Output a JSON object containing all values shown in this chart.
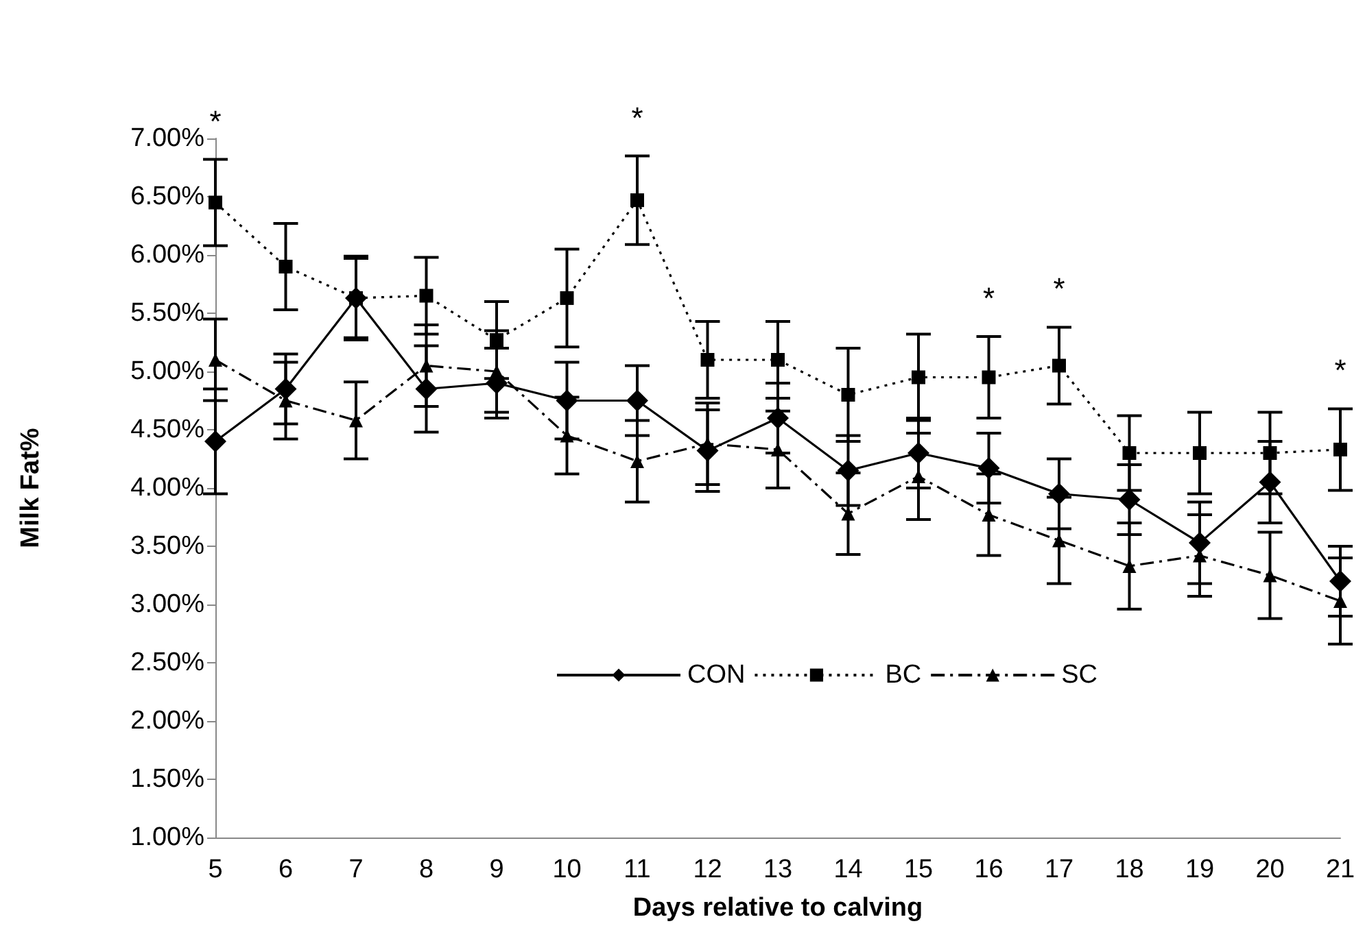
{
  "chart_data": {
    "type": "line",
    "xlabel": "Days relative to calving",
    "ylabel": "Milk Fat%",
    "categories": [
      "5",
      "6",
      "7",
      "8",
      "9",
      "10",
      "11",
      "12",
      "13",
      "14",
      "15",
      "16",
      "17",
      "18",
      "19",
      "20",
      "21"
    ],
    "series": [
      {
        "name": "CON",
        "color": "#000000",
        "marker": "diamond",
        "line_style": "solid",
        "values": [
          4.4,
          4.85,
          5.63,
          4.85,
          4.9,
          4.75,
          4.75,
          4.32,
          4.6,
          4.15,
          4.3,
          4.17,
          3.95,
          3.9,
          3.53,
          4.05,
          3.2
        ],
        "errors": [
          0.45,
          0.3,
          0.36,
          0.37,
          0.3,
          0.33,
          0.3,
          0.35,
          0.3,
          0.3,
          0.3,
          0.3,
          0.3,
          0.3,
          0.35,
          0.35,
          0.3
        ]
      },
      {
        "name": "BC",
        "color": "#000000",
        "marker": "square",
        "line_style": "dotted",
        "values": [
          6.45,
          5.9,
          5.63,
          5.65,
          5.27,
          5.63,
          6.47,
          5.1,
          5.1,
          4.8,
          4.95,
          4.95,
          5.05,
          4.3,
          4.3,
          4.3,
          4.33
        ],
        "errors": [
          0.37,
          0.37,
          0.34,
          0.33,
          0.33,
          0.42,
          0.38,
          0.33,
          0.33,
          0.4,
          0.37,
          0.35,
          0.33,
          0.32,
          0.35,
          0.35,
          0.35
        ]
      },
      {
        "name": "SC",
        "color": "#000000",
        "marker": "triangle",
        "line_style": "dashed",
        "values": [
          5.1,
          4.75,
          4.58,
          5.05,
          5.0,
          4.45,
          4.23,
          4.38,
          4.33,
          3.78,
          4.1,
          3.77,
          3.55,
          3.33,
          3.42,
          3.25,
          3.03
        ],
        "errors": [
          0.35,
          0.33,
          0.33,
          0.35,
          0.35,
          0.33,
          0.35,
          0.35,
          0.33,
          0.35,
          0.37,
          0.35,
          0.37,
          0.37,
          0.35,
          0.37,
          0.37
        ]
      }
    ],
    "ylim": [
      1,
      7
    ],
    "yticks": [
      {
        "value": 1,
        "label": "1.00%"
      },
      {
        "value": 1.5,
        "label": "1.50%"
      },
      {
        "value": 2,
        "label": "2.00%"
      },
      {
        "value": 2.5,
        "label": "2.50%"
      },
      {
        "value": 3,
        "label": "3.00%"
      },
      {
        "value": 3.5,
        "label": "3.50%"
      },
      {
        "value": 4,
        "label": "4.00%"
      },
      {
        "value": 4.5,
        "label": "4.50%"
      },
      {
        "value": 5,
        "label": "5.00%"
      },
      {
        "value": 5.5,
        "label": "5.50%"
      },
      {
        "value": 6,
        "label": "6.00%"
      },
      {
        "value": 6.5,
        "label": "6.50%"
      },
      {
        "value": 7,
        "label": "7.00%"
      }
    ],
    "annotations": [
      {
        "text": "*",
        "x": "5",
        "y": 6.45
      },
      {
        "text": "*",
        "x": "11",
        "y": 6.47
      },
      {
        "text": "*",
        "x": "16",
        "y": 4.95
      },
      {
        "text": "*",
        "x": "17",
        "y": 5.05
      },
      {
        "text": "*",
        "x": "21",
        "y": 4.33
      }
    ],
    "grid": false,
    "legend": "bottom"
  }
}
